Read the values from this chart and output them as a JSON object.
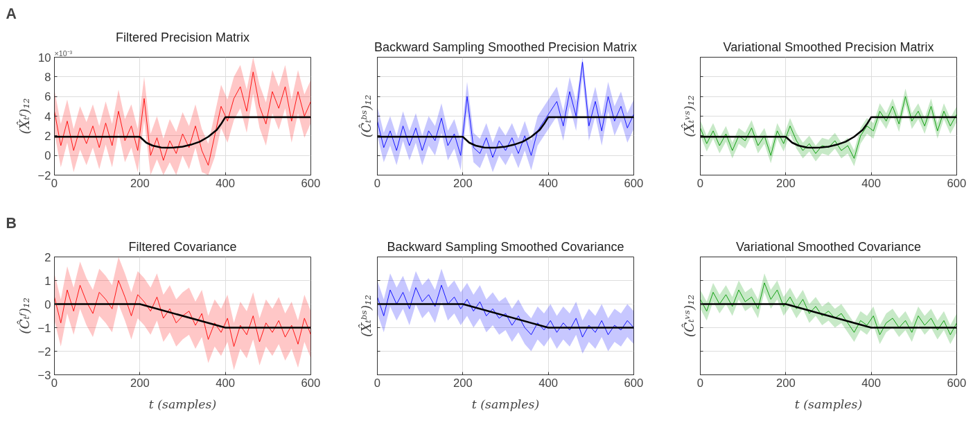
{
  "chart_data": [
    {
      "type": "line",
      "title": "Filtered Precision Matrix",
      "ylabel": "(X̂ₜᶠ)₁₂",
      "annotations": [
        "A",
        "×10⁻³"
      ],
      "xlim": [
        0,
        600
      ],
      "ylim": [
        -2,
        10
      ],
      "xticks": [
        0,
        200,
        400,
        600
      ],
      "yticks": [
        -2,
        0,
        2,
        4,
        6,
        8,
        10
      ],
      "grid": true,
      "x": [
        0,
        15,
        30,
        45,
        60,
        75,
        90,
        105,
        120,
        135,
        150,
        165,
        180,
        195,
        210,
        225,
        240,
        255,
        270,
        285,
        300,
        315,
        330,
        345,
        360,
        375,
        390,
        405,
        420,
        435,
        450,
        465,
        480,
        495,
        510,
        525,
        540,
        555,
        570,
        585,
        600
      ],
      "series": [
        {
          "color": "#ff0000",
          "values": [
            4.5,
            1.0,
            3.5,
            0.5,
            2.8,
            1.2,
            3.0,
            0.8,
            3.3,
            1.0,
            4.5,
            1.5,
            3.0,
            0.5,
            5.8,
            0.0,
            1.8,
            -0.5,
            1.5,
            0.2,
            2.2,
            0.8,
            3.0,
            0.5,
            -1.0,
            2.0,
            5.0,
            3.5,
            5.8,
            7.0,
            4.5,
            8.5,
            5.0,
            3.2,
            6.5,
            4.8,
            7.0,
            3.5,
            6.5,
            4.0,
            5.5
          ],
          "lower": [
            2.3,
            -1.2,
            1.3,
            -1.7,
            0.6,
            -1.0,
            0.8,
            -1.4,
            1.1,
            -1.2,
            2.3,
            -0.7,
            0.8,
            -1.7,
            3.6,
            -2,
            -0.4,
            -2,
            -0.7,
            -2,
            0.0,
            -1.4,
            0.8,
            -1.7,
            -2,
            -0.2,
            2.8,
            1.3,
            3.6,
            4.8,
            2.3,
            6.3,
            2.8,
            1.0,
            4.3,
            2.6,
            4.8,
            1.3,
            4.3,
            1.8,
            3.3
          ],
          "upper": [
            6.7,
            3.2,
            5.7,
            2.7,
            5.0,
            3.4,
            5.2,
            3.0,
            5.5,
            3.2,
            6.7,
            3.7,
            5.2,
            2.7,
            8.0,
            2.2,
            4.0,
            1.7,
            3.7,
            2.4,
            4.4,
            3.0,
            5.2,
            2.7,
            1.2,
            4.2,
            7.2,
            5.7,
            8.0,
            9.2,
            6.7,
            10,
            7.2,
            5.4,
            8.7,
            7.0,
            9.2,
            5.7,
            8.7,
            6.2,
            7.7
          ]
        },
        {
          "color": "#000000",
          "x": [
            0,
            200,
            215,
            230,
            250,
            265,
            280,
            300,
            320,
            340,
            360,
            380,
            390,
            400,
            600
          ],
          "values": [
            1.9,
            1.9,
            1.3,
            1.0,
            0.8,
            0.78,
            0.8,
            0.9,
            1.1,
            1.4,
            1.9,
            2.6,
            3.2,
            3.9,
            3.9
          ]
        }
      ]
    },
    {
      "type": "line",
      "title": "Backward Sampling Smoothed Precision Matrix",
      "ylabel": "(Ĉₜᵇˢ)₁₂",
      "tick_labels": "x",
      "xlim": [
        0,
        600
      ],
      "ylim": [
        -2,
        10
      ],
      "xticks": [
        0,
        200,
        400,
        600
      ],
      "yticks": [
        -2,
        0,
        2,
        4,
        6,
        8,
        10
      ],
      "grid": true,
      "x": [
        0,
        15,
        30,
        45,
        60,
        75,
        90,
        105,
        120,
        135,
        150,
        165,
        180,
        195,
        210,
        225,
        240,
        255,
        270,
        285,
        300,
        315,
        330,
        345,
        360,
        375,
        390,
        405,
        420,
        435,
        450,
        465,
        480,
        495,
        510,
        525,
        540,
        555,
        570,
        585,
        600
      ],
      "series": [
        {
          "color": "#0000ff",
          "values": [
            3.5,
            0.8,
            2.5,
            0.5,
            3.0,
            1.0,
            2.8,
            0.5,
            2.5,
            1.5,
            3.8,
            1.0,
            2.2,
            0.0,
            6.0,
            0.8,
            0.2,
            1.8,
            -0.2,
            1.5,
            0.5,
            1.8,
            0.2,
            2.0,
            0.0,
            2.5,
            3.5,
            4.5,
            5.5,
            3.0,
            6.5,
            4.0,
            9.5,
            3.0,
            5.5,
            2.5,
            6.0,
            3.5,
            5.0,
            2.8,
            4.2
          ],
          "lower": [
            2.0,
            -0.7,
            1.0,
            -1.0,
            1.5,
            -0.5,
            1.3,
            -1.0,
            1.0,
            0.0,
            2.3,
            -0.5,
            0.7,
            -1.5,
            4.5,
            -0.7,
            -1.3,
            0.3,
            -1.7,
            0.0,
            -1.0,
            0.3,
            -1.3,
            0.5,
            -1.5,
            1.0,
            2.0,
            3.0,
            4.0,
            1.5,
            5.0,
            2.5,
            8.0,
            1.5,
            4.0,
            1.0,
            4.5,
            2.0,
            3.5,
            1.3,
            2.7
          ],
          "upper": [
            5.0,
            2.3,
            4.0,
            2.0,
            4.5,
            2.5,
            4.3,
            2.0,
            4.0,
            3.0,
            5.3,
            2.5,
            3.7,
            1.5,
            7.5,
            2.3,
            1.7,
            3.3,
            1.3,
            3.0,
            2.0,
            3.3,
            1.7,
            3.5,
            1.5,
            4.0,
            5.0,
            6.0,
            7.0,
            4.5,
            8.0,
            5.5,
            10,
            4.5,
            7.0,
            4.0,
            7.5,
            5.0,
            6.5,
            4.3,
            5.7
          ]
        },
        {
          "color": "#000000",
          "x": [
            0,
            200,
            215,
            230,
            250,
            265,
            280,
            300,
            320,
            340,
            360,
            380,
            390,
            400,
            600
          ],
          "values": [
            1.9,
            1.9,
            1.3,
            1.0,
            0.8,
            0.78,
            0.8,
            0.9,
            1.1,
            1.4,
            1.9,
            2.6,
            3.2,
            3.9,
            3.9
          ]
        }
      ]
    },
    {
      "type": "line",
      "title": "Variational Smoothed Precision Matrix",
      "ylabel": "(X̂ₜᵛˢ)₁₂",
      "tick_labels": "x",
      "xlim": [
        0,
        600
      ],
      "ylim": [
        -2,
        10
      ],
      "xticks": [
        0,
        200,
        400,
        600
      ],
      "yticks": [
        -2,
        0,
        2,
        4,
        6,
        8,
        10
      ],
      "grid": true,
      "x": [
        0,
        15,
        30,
        45,
        60,
        75,
        90,
        105,
        120,
        135,
        150,
        165,
        180,
        195,
        210,
        225,
        240,
        255,
        270,
        285,
        300,
        315,
        330,
        345,
        360,
        375,
        390,
        405,
        420,
        435,
        450,
        465,
        480,
        495,
        510,
        525,
        540,
        555,
        570,
        585,
        600
      ],
      "series": [
        {
          "color": "#009900",
          "values": [
            2.8,
            1.2,
            2.5,
            1.0,
            2.2,
            0.5,
            2.0,
            1.5,
            2.8,
            1.0,
            2.0,
            0.0,
            2.5,
            1.2,
            3.0,
            1.5,
            0.5,
            1.2,
            0.2,
            1.0,
            0.8,
            1.5,
            0.5,
            1.0,
            -0.3,
            2.0,
            3.0,
            2.5,
            4.5,
            3.5,
            5.0,
            3.2,
            6.0,
            3.5,
            4.5,
            3.0,
            5.0,
            2.5,
            4.5,
            3.0,
            4.2
          ],
          "lower": [
            2.0,
            0.4,
            1.7,
            0.2,
            1.4,
            -0.3,
            1.2,
            0.7,
            2.0,
            0.2,
            1.2,
            -0.8,
            1.7,
            0.4,
            2.2,
            0.7,
            -0.3,
            0.4,
            -0.6,
            0.2,
            0.0,
            0.7,
            -0.3,
            0.2,
            -1.1,
            1.2,
            2.2,
            1.7,
            3.7,
            2.7,
            4.2,
            2.4,
            5.2,
            2.7,
            3.7,
            2.2,
            4.2,
            1.7,
            3.7,
            2.2,
            3.4
          ],
          "upper": [
            3.6,
            2.0,
            3.3,
            1.8,
            3.0,
            1.3,
            2.8,
            2.3,
            3.6,
            1.8,
            2.8,
            0.8,
            3.3,
            2.0,
            3.8,
            2.3,
            1.3,
            2.0,
            1.0,
            1.8,
            1.6,
            2.3,
            1.3,
            1.8,
            0.5,
            2.8,
            3.8,
            3.3,
            5.3,
            4.3,
            5.8,
            4.0,
            6.8,
            4.3,
            5.3,
            3.8,
            5.8,
            3.3,
            5.3,
            3.8,
            5.0
          ]
        },
        {
          "color": "#000000",
          "x": [
            0,
            200,
            215,
            230,
            250,
            265,
            280,
            300,
            320,
            340,
            360,
            380,
            390,
            400,
            600
          ],
          "values": [
            1.9,
            1.9,
            1.3,
            1.0,
            0.8,
            0.78,
            0.8,
            0.9,
            1.1,
            1.4,
            1.9,
            2.6,
            3.2,
            3.9,
            3.9
          ]
        }
      ]
    },
    {
      "type": "line",
      "title": "Filtered Covariance",
      "ylabel": "(Ĉₜᶠ)₁₂",
      "xlabel": "t (samples)",
      "annotations": [
        "B"
      ],
      "xlim": [
        0,
        600
      ],
      "ylim": [
        -3,
        2
      ],
      "xticks": [
        0,
        200,
        400,
        600
      ],
      "yticks": [
        -3,
        -2,
        -1,
        0,
        1,
        2
      ],
      "grid": true,
      "x": [
        0,
        15,
        30,
        45,
        60,
        75,
        90,
        105,
        120,
        135,
        150,
        165,
        180,
        195,
        210,
        225,
        240,
        255,
        270,
        285,
        300,
        315,
        330,
        345,
        360,
        375,
        390,
        405,
        420,
        435,
        450,
        465,
        480,
        495,
        510,
        525,
        540,
        555,
        570,
        585,
        600
      ],
      "series": [
        {
          "color": "#ff0000",
          "values": [
            0.3,
            -0.8,
            0.6,
            -0.3,
            0.8,
            0.1,
            -0.4,
            0.5,
            0.2,
            -0.2,
            1.0,
            0.3,
            -0.5,
            0.4,
            0.1,
            -0.3,
            0.3,
            -0.6,
            -0.2,
            -0.8,
            -0.5,
            -0.3,
            -0.9,
            -0.4,
            -1.5,
            -0.8,
            -1.2,
            -0.6,
            -1.8,
            -0.9,
            -1.3,
            -0.5,
            -1.6,
            -0.8,
            -1.2,
            -0.7,
            -1.4,
            -0.9,
            -1.7,
            -0.6,
            -1.3
          ],
          "lower": [
            -0.7,
            -1.8,
            -0.4,
            -1.3,
            -0.2,
            -0.9,
            -1.4,
            -0.5,
            -0.8,
            -1.2,
            0.0,
            -0.7,
            -1.5,
            -0.6,
            -0.9,
            -1.3,
            -0.7,
            -1.6,
            -1.2,
            -1.8,
            -1.5,
            -1.3,
            -1.9,
            -1.4,
            -2.5,
            -1.8,
            -2.2,
            -1.6,
            -2.8,
            -1.9,
            -2.3,
            -1.5,
            -2.6,
            -1.8,
            -2.2,
            -1.7,
            -2.4,
            -1.9,
            -2.7,
            -1.6,
            -2.3
          ],
          "upper": [
            1.3,
            0.2,
            1.6,
            0.7,
            1.8,
            1.1,
            0.6,
            1.5,
            1.2,
            0.8,
            2.0,
            1.3,
            0.5,
            1.4,
            1.1,
            0.7,
            1.3,
            0.4,
            0.8,
            0.2,
            0.5,
            0.7,
            0.1,
            0.6,
            -0.5,
            0.2,
            -0.2,
            0.4,
            -0.8,
            0.1,
            -0.3,
            0.5,
            -0.6,
            0.2,
            -0.2,
            0.3,
            -0.4,
            0.1,
            -0.7,
            0.4,
            -0.3
          ]
        },
        {
          "color": "#000000",
          "x": [
            0,
            200,
            400,
            600
          ],
          "values": [
            0,
            0,
            -1,
            -1
          ]
        }
      ]
    },
    {
      "type": "line",
      "title": "Backward Sampling Smoothed Covariance",
      "ylabel": "(X̂ₜᵇˢ)₁₂",
      "xlabel": "t (samples)",
      "tick_labels": "x",
      "xlim": [
        0,
        600
      ],
      "ylim": [
        -3,
        2
      ],
      "xticks": [
        0,
        200,
        400,
        600
      ],
      "yticks": [
        -3,
        -2,
        -1,
        0,
        1,
        2
      ],
      "grid": true,
      "x": [
        0,
        15,
        30,
        45,
        60,
        75,
        90,
        105,
        120,
        135,
        150,
        165,
        180,
        195,
        210,
        225,
        240,
        255,
        270,
        285,
        300,
        315,
        330,
        345,
        360,
        375,
        390,
        405,
        420,
        435,
        450,
        465,
        480,
        495,
        510,
        525,
        540,
        555,
        570,
        585,
        600
      ],
      "series": [
        {
          "color": "#0000ff",
          "values": [
            0.3,
            -0.5,
            0.6,
            0.0,
            0.5,
            -0.2,
            0.7,
            0.1,
            0.4,
            -0.1,
            0.8,
            0.0,
            0.3,
            -0.2,
            0.2,
            -0.3,
            0.1,
            -0.5,
            -0.2,
            -0.6,
            -0.4,
            -0.9,
            -0.5,
            -1.0,
            -1.3,
            -0.8,
            -1.1,
            -0.7,
            -1.2,
            -0.8,
            -1.1,
            -0.6,
            -1.4,
            -0.9,
            -1.2,
            -0.7,
            -1.3,
            -0.9,
            -1.1,
            -0.7,
            -1.0
          ],
          "lower": [
            -0.4,
            -1.2,
            -0.1,
            -0.7,
            -0.2,
            -0.9,
            0.0,
            -0.6,
            -0.3,
            -0.8,
            0.1,
            -0.7,
            -0.4,
            -0.9,
            -0.5,
            -1.0,
            -0.6,
            -1.2,
            -0.9,
            -1.3,
            -1.1,
            -1.6,
            -1.2,
            -1.7,
            -2.0,
            -1.5,
            -1.8,
            -1.4,
            -1.9,
            -1.5,
            -1.8,
            -1.3,
            -2.1,
            -1.6,
            -1.9,
            -1.4,
            -2.0,
            -1.6,
            -1.8,
            -1.4,
            -1.7
          ],
          "upper": [
            1.0,
            0.2,
            1.3,
            0.7,
            1.2,
            0.5,
            1.4,
            0.8,
            1.1,
            0.6,
            1.5,
            0.7,
            1.0,
            0.5,
            0.9,
            0.4,
            0.8,
            0.2,
            0.5,
            0.1,
            0.3,
            -0.2,
            0.2,
            -0.3,
            -0.6,
            -0.1,
            -0.4,
            0.0,
            -0.5,
            -0.1,
            -0.4,
            0.1,
            -0.7,
            -0.2,
            -0.5,
            0.0,
            -0.6,
            -0.2,
            -0.4,
            0.0,
            -0.3
          ]
        },
        {
          "color": "#000000",
          "x": [
            0,
            200,
            400,
            600
          ],
          "values": [
            0,
            0,
            -1,
            -1
          ]
        }
      ]
    },
    {
      "type": "line",
      "title": "Variational Smoothed Covariance",
      "ylabel": "(Ĉₜᵛˢ)₁₂",
      "xlabel": "t (samples)",
      "tick_labels": "x",
      "xlim": [
        0,
        600
      ],
      "ylim": [
        -3,
        2
      ],
      "xticks": [
        0,
        200,
        400,
        600
      ],
      "yticks": [
        -3,
        -2,
        -1,
        0,
        1,
        2
      ],
      "grid": true,
      "x": [
        0,
        15,
        30,
        45,
        60,
        75,
        90,
        105,
        120,
        135,
        150,
        165,
        180,
        195,
        210,
        225,
        240,
        255,
        270,
        285,
        300,
        315,
        330,
        345,
        360,
        375,
        390,
        405,
        420,
        435,
        450,
        465,
        480,
        495,
        510,
        525,
        540,
        555,
        570,
        585,
        600
      ],
      "series": [
        {
          "color": "#009900",
          "values": [
            0.2,
            -0.3,
            0.5,
            0.0,
            0.4,
            -0.1,
            0.6,
            0.1,
            0.3,
            -0.2,
            0.9,
            0.2,
            0.6,
            -0.1,
            0.3,
            -0.2,
            0.2,
            -0.4,
            -0.1,
            -0.5,
            -0.3,
            -0.6,
            -0.4,
            -0.8,
            -1.2,
            -0.7,
            -0.9,
            -0.5,
            -1.3,
            -0.8,
            -0.6,
            -1.0,
            -0.7,
            -1.2,
            -0.5,
            -0.9,
            -0.6,
            -1.1,
            -0.7,
            -1.3,
            -0.8
          ],
          "lower": [
            -0.2,
            -0.7,
            0.1,
            -0.4,
            0.0,
            -0.5,
            0.2,
            -0.3,
            -0.1,
            -0.6,
            0.5,
            -0.2,
            0.2,
            -0.5,
            -0.1,
            -0.6,
            -0.2,
            -0.8,
            -0.5,
            -0.9,
            -0.7,
            -1.0,
            -0.8,
            -1.2,
            -1.6,
            -1.1,
            -1.3,
            -0.9,
            -1.7,
            -1.2,
            -1.0,
            -1.4,
            -1.1,
            -1.6,
            -0.9,
            -1.3,
            -1.0,
            -1.5,
            -1.1,
            -1.7,
            -1.2
          ],
          "upper": [
            0.6,
            0.1,
            0.9,
            0.4,
            0.8,
            0.3,
            1.0,
            0.5,
            0.7,
            0.2,
            1.3,
            0.6,
            1.0,
            0.3,
            0.7,
            0.2,
            0.6,
            0.0,
            0.3,
            -0.1,
            0.1,
            -0.2,
            0.0,
            -0.4,
            -0.8,
            -0.3,
            -0.5,
            -0.1,
            -0.9,
            -0.4,
            -0.2,
            -0.6,
            -0.3,
            -0.8,
            -0.1,
            -0.5,
            -0.2,
            -0.7,
            -0.3,
            -0.9,
            -0.4
          ]
        },
        {
          "color": "#000000",
          "x": [
            0,
            200,
            400,
            600
          ],
          "values": [
            0,
            0,
            -1,
            -1
          ]
        }
      ]
    }
  ]
}
